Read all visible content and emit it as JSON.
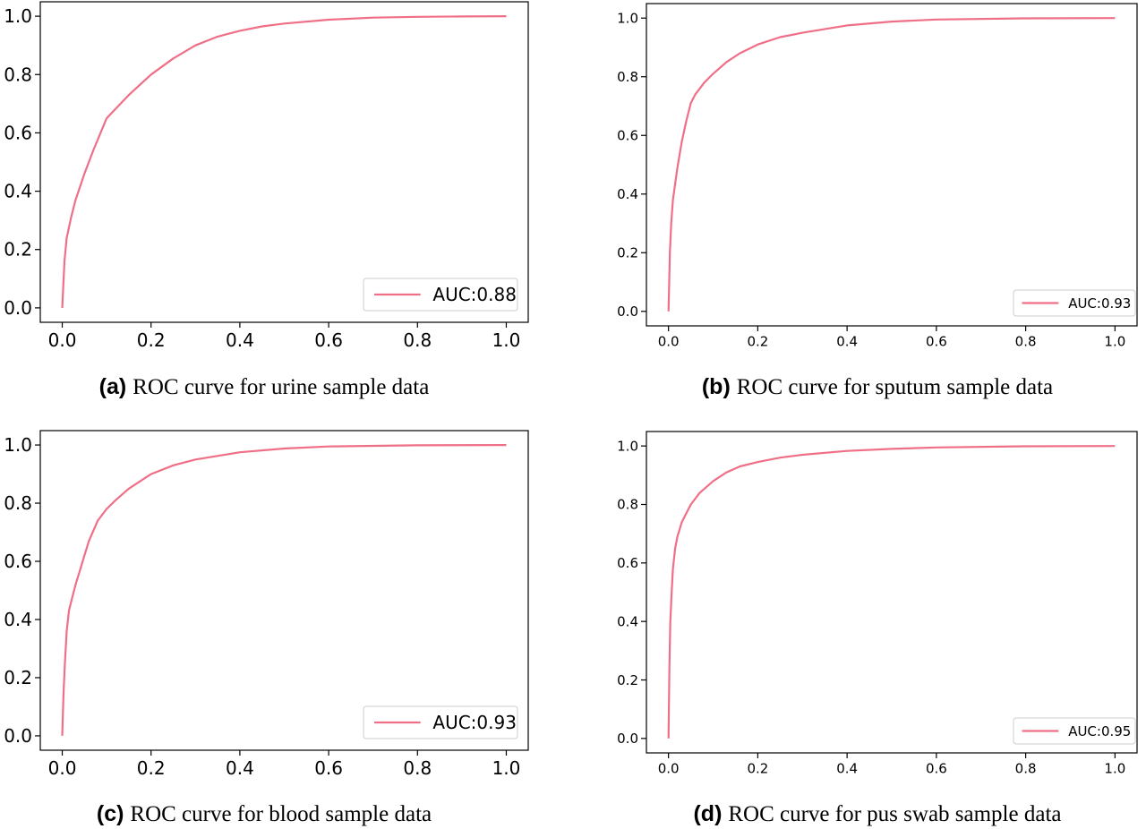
{
  "chart_data": [
    {
      "type": "line",
      "caption_tag": "(a)",
      "caption": "ROC curve for urine sample data",
      "xlim": [
        0,
        1
      ],
      "ylim": [
        0,
        1
      ],
      "x_ticks": [
        "0.0",
        "0.2",
        "0.4",
        "0.6",
        "0.8",
        "1.0"
      ],
      "y_ticks": [
        "0.0",
        "0.2",
        "0.4",
        "0.6",
        "0.8",
        "1.0"
      ],
      "grid": false,
      "legend_position": "bottom-right",
      "color": "#ef6f87",
      "series": [
        {
          "name": "AUC:0.88",
          "x": [
            0,
            0.005,
            0.01,
            0.02,
            0.03,
            0.05,
            0.07,
            0.1,
            0.15,
            0.2,
            0.25,
            0.3,
            0.35,
            0.4,
            0.45,
            0.5,
            0.6,
            0.7,
            0.8,
            0.9,
            1.0
          ],
          "y": [
            0,
            0.16,
            0.24,
            0.31,
            0.37,
            0.46,
            0.54,
            0.65,
            0.73,
            0.8,
            0.855,
            0.9,
            0.93,
            0.95,
            0.965,
            0.975,
            0.988,
            0.995,
            0.998,
            0.999,
            1.0
          ]
        }
      ]
    },
    {
      "type": "line",
      "caption_tag": "(b)",
      "caption": "ROC curve for sputum sample data",
      "xlim": [
        0,
        1
      ],
      "ylim": [
        0,
        1
      ],
      "x_ticks": [
        "0.0",
        "0.2",
        "0.4",
        "0.6",
        "0.8",
        "1.0"
      ],
      "y_ticks": [
        "0.0",
        "0.2",
        "0.4",
        "0.6",
        "0.8",
        "1.0"
      ],
      "grid": false,
      "legend_position": "bottom-right",
      "color": "#ef6f87",
      "series": [
        {
          "name": "AUC:0.93",
          "x": [
            0,
            0.003,
            0.006,
            0.01,
            0.02,
            0.03,
            0.04,
            0.05,
            0.06,
            0.08,
            0.1,
            0.13,
            0.16,
            0.2,
            0.25,
            0.3,
            0.4,
            0.5,
            0.6,
            0.8,
            1.0
          ],
          "y": [
            0,
            0.2,
            0.3,
            0.38,
            0.49,
            0.58,
            0.65,
            0.71,
            0.74,
            0.78,
            0.81,
            0.85,
            0.88,
            0.91,
            0.935,
            0.95,
            0.975,
            0.988,
            0.995,
            0.999,
            1.0
          ]
        }
      ]
    },
    {
      "type": "line",
      "caption_tag": "(c)",
      "caption": "ROC curve for blood sample data",
      "xlim": [
        0,
        1
      ],
      "ylim": [
        0,
        1
      ],
      "x_ticks": [
        "0.0",
        "0.2",
        "0.4",
        "0.6",
        "0.8",
        "1.0"
      ],
      "y_ticks": [
        "0.0",
        "0.2",
        "0.4",
        "0.6",
        "0.8",
        "1.0"
      ],
      "grid": false,
      "legend_position": "bottom-right",
      "color": "#ef6f87",
      "series": [
        {
          "name": "AUC:0.93",
          "x": [
            0,
            0.003,
            0.006,
            0.01,
            0.015,
            0.02,
            0.03,
            0.04,
            0.05,
            0.06,
            0.08,
            0.1,
            0.12,
            0.15,
            0.2,
            0.25,
            0.3,
            0.4,
            0.5,
            0.6,
            0.8,
            1.0
          ],
          "y": [
            0,
            0.15,
            0.25,
            0.36,
            0.43,
            0.46,
            0.52,
            0.57,
            0.62,
            0.67,
            0.74,
            0.78,
            0.81,
            0.85,
            0.9,
            0.93,
            0.95,
            0.975,
            0.988,
            0.995,
            0.999,
            1.0
          ]
        }
      ]
    },
    {
      "type": "line",
      "caption_tag": "(d)",
      "caption": "ROC curve for pus swab sample data",
      "xlim": [
        0,
        1
      ],
      "ylim": [
        0,
        1
      ],
      "x_ticks": [
        "0.0",
        "0.2",
        "0.4",
        "0.6",
        "0.8",
        "1.0"
      ],
      "y_ticks": [
        "0.0",
        "0.2",
        "0.4",
        "0.6",
        "0.8",
        "1.0"
      ],
      "grid": false,
      "legend_position": "bottom-right",
      "color": "#ef6f87",
      "series": [
        {
          "name": "AUC:0.95",
          "x": [
            0,
            0.002,
            0.004,
            0.007,
            0.01,
            0.015,
            0.02,
            0.03,
            0.04,
            0.05,
            0.07,
            0.1,
            0.13,
            0.16,
            0.2,
            0.25,
            0.3,
            0.4,
            0.5,
            0.6,
            0.8,
            1.0
          ],
          "y": [
            0,
            0.25,
            0.4,
            0.5,
            0.58,
            0.65,
            0.69,
            0.74,
            0.77,
            0.8,
            0.84,
            0.88,
            0.91,
            0.93,
            0.945,
            0.96,
            0.97,
            0.983,
            0.99,
            0.995,
            0.999,
            1.0
          ]
        }
      ]
    }
  ]
}
